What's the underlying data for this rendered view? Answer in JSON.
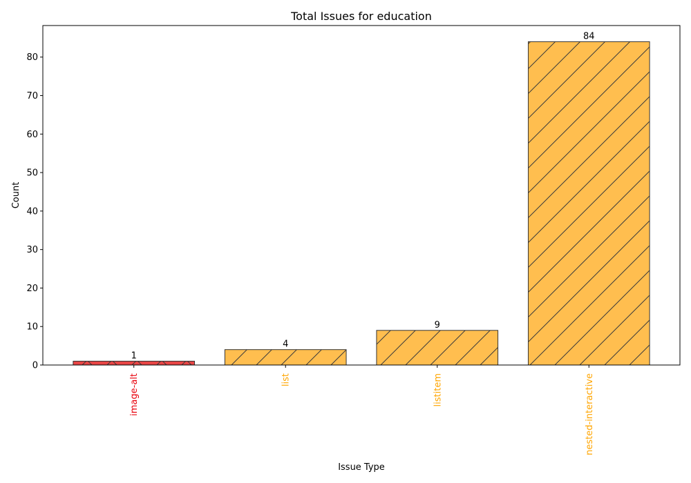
{
  "chart_data": {
    "type": "bar",
    "title": "Total Issues for education",
    "xlabel": "Issue Type",
    "ylabel": "Count",
    "categories": [
      "image-alt",
      "list",
      "listitem",
      "nested-interactive"
    ],
    "values": [
      1,
      4,
      9,
      84
    ],
    "ylim": [
      0,
      88.2
    ],
    "yticks": [
      0,
      10,
      20,
      30,
      40,
      50,
      60,
      70,
      80
    ],
    "bar_colors": [
      "#e84545",
      "#ffbe4f",
      "#ffbe4f",
      "#ffbe4f"
    ],
    "label_colors": [
      "#e8000b",
      "#ffa500",
      "#ffa500",
      "#ffa500"
    ],
    "hatches": [
      "x",
      "/",
      "/",
      "/"
    ],
    "grid": false,
    "legend": false
  }
}
